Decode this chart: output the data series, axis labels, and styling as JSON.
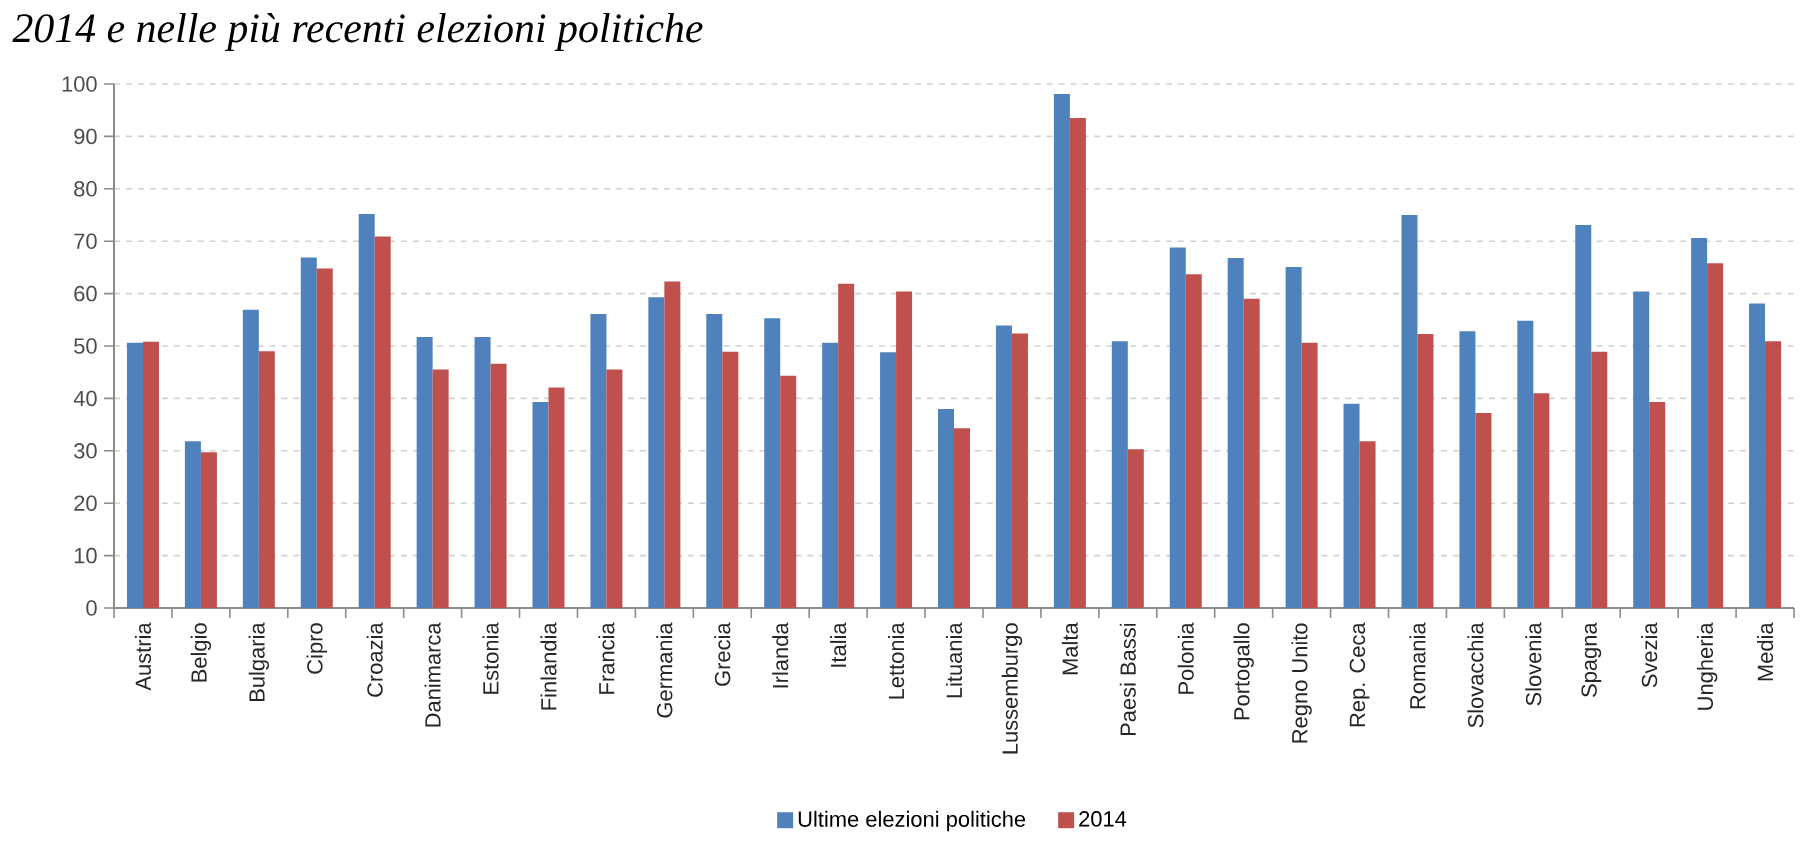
{
  "chart_data": {
    "type": "bar",
    "title": "2014 e nelle più recenti elezioni politiche",
    "categories": [
      "Austria",
      "Belgio",
      "Bulgaria",
      "Cipro",
      "Croazia",
      "Danimarca",
      "Estonia",
      "Finlandia",
      "Francia",
      "Germania",
      "Grecia",
      "Irlanda",
      "Italia",
      "Lettonia",
      "Lituania",
      "Lussemburgo",
      "Malta",
      "Paesi Bassi",
      "Polonia",
      "Portogallo",
      "Regno Unito",
      "Rep. Ceca",
      "Romania",
      "Slovacchia",
      "Slovenia",
      "Spagna",
      "Svezia",
      "Ungheria",
      "Media"
    ],
    "series": [
      {
        "name": "Ultime elezioni politiche",
        "color": "#4f81bd",
        "values": [
          50.6,
          31.8,
          56.9,
          66.9,
          75.2,
          51.7,
          51.7,
          39.3,
          56.1,
          59.3,
          56.1,
          55.3,
          50.6,
          48.8,
          38.0,
          53.9,
          98.1,
          50.9,
          68.8,
          66.8,
          65.1,
          39.0,
          75.0,
          52.8,
          54.8,
          73.1,
          60.4,
          70.6,
          58.1
        ]
      },
      {
        "name": "2014",
        "color": "#c0504d",
        "values": [
          50.8,
          29.7,
          49.0,
          64.8,
          70.9,
          45.5,
          46.6,
          42.1,
          45.5,
          62.3,
          48.9,
          44.3,
          61.9,
          60.4,
          34.3,
          52.4,
          93.5,
          30.3,
          63.7,
          59.0,
          50.6,
          31.8,
          52.3,
          37.2,
          41.0,
          48.9,
          39.3,
          65.8,
          50.9
        ]
      }
    ],
    "ylim": [
      0,
      100
    ],
    "yticks": [
      0,
      10,
      20,
      30,
      40,
      50,
      60,
      70,
      80,
      90,
      100
    ],
    "grid": "y",
    "legend": "bottom"
  }
}
